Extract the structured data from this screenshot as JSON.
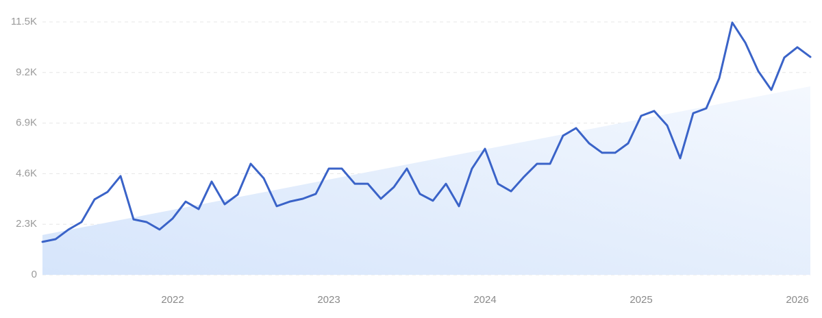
{
  "chart_data": {
    "type": "line",
    "categories": [
      null,
      null,
      null,
      null,
      null,
      null,
      null,
      null,
      null,
      null,
      "2022",
      null,
      null,
      null,
      null,
      null,
      null,
      null,
      null,
      null,
      null,
      null,
      "2023",
      null,
      null,
      null,
      null,
      null,
      null,
      null,
      null,
      null,
      null,
      null,
      "2024",
      null,
      null,
      null,
      null,
      null,
      null,
      null,
      null,
      null,
      null,
      null,
      "2025",
      null,
      null,
      null,
      null,
      null,
      null,
      null,
      null,
      null,
      null,
      null,
      "2026",
      null
    ],
    "series": [
      {
        "color": "#3a63c8",
        "values": [
          1500,
          1620,
          2060,
          2400,
          3430,
          3770,
          4490,
          2520,
          2400,
          2060,
          2560,
          3330,
          2990,
          4240,
          3210,
          3650,
          5050,
          4390,
          3120,
          3330,
          3460,
          3680,
          4830,
          4830,
          4140,
          4140,
          3460,
          3990,
          4830,
          3680,
          3370,
          4140,
          3120,
          4830,
          5730,
          4140,
          3800,
          4460,
          5050,
          5050,
          6330,
          6670,
          5980,
          5550,
          5550,
          5980,
          7230,
          7450,
          6790,
          5300,
          7350,
          7570,
          8940,
          11470,
          10560,
          9260,
          8410,
          9880,
          10350,
          9910
        ]
      }
    ],
    "trend": [
      1810,
      8570
    ],
    "trend_color": "#dbe8fb",
    "ylim": [
      0,
      11500
    ],
    "yticks": [
      0,
      {
        "value": 2300,
        "label": "2.3K"
      },
      {
        "value": 4600,
        "label": "4.6K"
      },
      {
        "value": 6900,
        "label": "6.9K"
      },
      {
        "value": 9200,
        "label": "9.2K"
      },
      {
        "value": 11500,
        "label": "11.5K"
      }
    ],
    "grid": true
  }
}
